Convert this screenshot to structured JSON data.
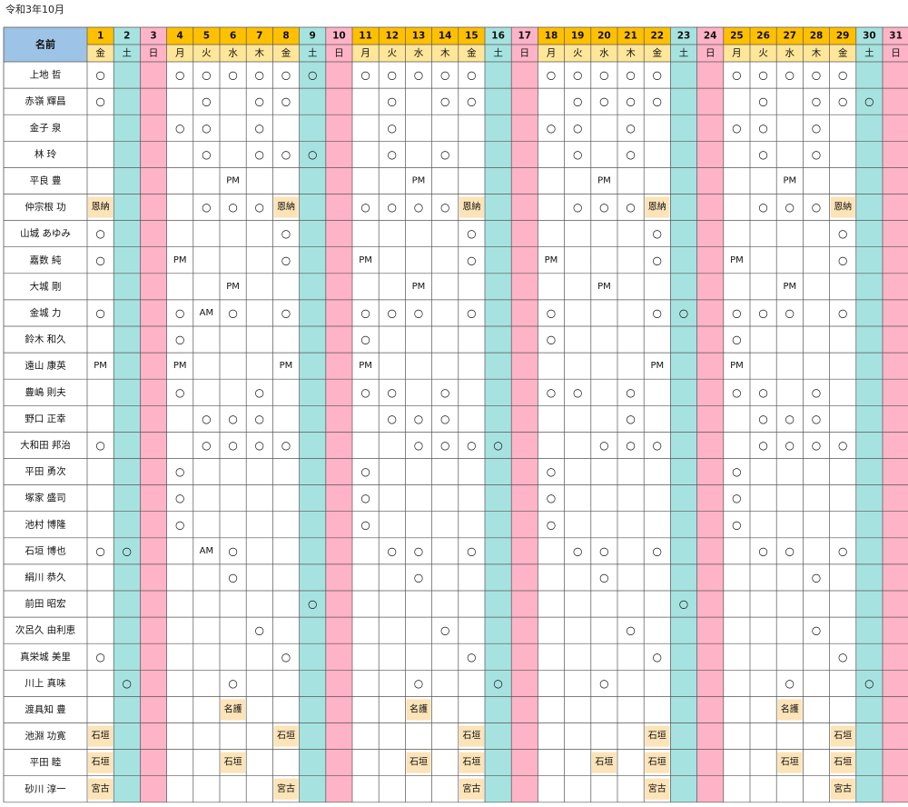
{
  "title": "令和3年10月",
  "header": {
    "name_label": "名前"
  },
  "days": [
    "1",
    "2",
    "3",
    "4",
    "5",
    "6",
    "7",
    "8",
    "9",
    "10",
    "11",
    "12",
    "13",
    "14",
    "15",
    "16",
    "17",
    "18",
    "19",
    "20",
    "21",
    "22",
    "23",
    "24",
    "25",
    "26",
    "27",
    "28",
    "29",
    "30",
    "31"
  ],
  "weekdays": [
    "金",
    "土",
    "日",
    "月",
    "火",
    "水",
    "木",
    "金",
    "土",
    "日",
    "月",
    "火",
    "水",
    "木",
    "金",
    "土",
    "日",
    "月",
    "火",
    "水",
    "木",
    "金",
    "土",
    "日",
    "月",
    "火",
    "水",
    "木",
    "金",
    "土",
    "日"
  ],
  "colors": {
    "header_name_bg": "#9dc3e6",
    "header_day_bg": "#ffc000",
    "header_weekday_bg": "#ffe699",
    "saturday_bg": "#a6e3e0",
    "sunday_bg": "#ffb3c6",
    "tag_bg": "#fce4b8",
    "grid_line": "#555555"
  },
  "rows": [
    {
      "name": "上地 哲",
      "cells": {
        "1": "○",
        "4": "○",
        "5": "○",
        "6": "○",
        "7": "○",
        "8": "○",
        "9": "○",
        "11": "○",
        "12": "○",
        "13": "○",
        "14": "○",
        "15": "○",
        "18": "○",
        "19": "○",
        "20": "○",
        "21": "○",
        "22": "○",
        "25": "○",
        "26": "○",
        "27": "○",
        "28": "○",
        "29": "○"
      }
    },
    {
      "name": "赤嶺 輝昌",
      "cells": {
        "1": "○",
        "5": "○",
        "7": "○",
        "8": "○",
        "12": "○",
        "14": "○",
        "15": "○",
        "19": "○",
        "20": "○",
        "21": "○",
        "22": "○",
        "26": "○",
        "28": "○",
        "29": "○",
        "30": "○"
      }
    },
    {
      "name": "金子 泉",
      "cells": {
        "4": "○",
        "5": "○",
        "7": "○",
        "12": "○",
        "18": "○",
        "19": "○",
        "21": "○",
        "25": "○",
        "26": "○",
        "28": "○"
      }
    },
    {
      "name": "林 玲",
      "cells": {
        "5": "○",
        "7": "○",
        "8": "○",
        "9": "○",
        "12": "○",
        "14": "○",
        "19": "○",
        "21": "○",
        "26": "○",
        "28": "○"
      }
    },
    {
      "name": "平良 豊",
      "cells": {
        "6": "PM",
        "13": "PM",
        "20": "PM",
        "27": "PM"
      }
    },
    {
      "name": "仲宗根 功",
      "cells": {
        "1": "恩納",
        "5": "○",
        "6": "○",
        "7": "○",
        "8": "恩納",
        "11": "○",
        "12": "○",
        "13": "○",
        "14": "○",
        "15": "恩納",
        "19": "○",
        "20": "○",
        "21": "○",
        "22": "恩納",
        "26": "○",
        "27": "○",
        "28": "○",
        "29": "恩納"
      }
    },
    {
      "name": "山城 あゆみ",
      "cells": {
        "1": "○",
        "8": "○",
        "15": "○",
        "22": "○",
        "29": "○"
      }
    },
    {
      "name": "嘉数 純",
      "cells": {
        "1": "○",
        "4": "PM",
        "8": "○",
        "11": "PM",
        "15": "○",
        "18": "PM",
        "22": "○",
        "25": "PM",
        "29": "○"
      }
    },
    {
      "name": "大城 剛",
      "cells": {
        "6": "PM",
        "13": "PM",
        "20": "PM",
        "27": "PM"
      }
    },
    {
      "name": "金城 力",
      "cells": {
        "1": "○",
        "4": "○",
        "5": "AM",
        "6": "○",
        "8": "○",
        "11": "○",
        "12": "○",
        "13": "○",
        "15": "○",
        "18": "○",
        "22": "○",
        "23": "○",
        "25": "○",
        "26": "○",
        "27": "○",
        "29": "○"
      }
    },
    {
      "name": "鈴木 和久",
      "cells": {
        "4": "○",
        "11": "○",
        "18": "○",
        "25": "○"
      }
    },
    {
      "name": "遠山 康英",
      "cells": {
        "1": "PM",
        "4": "PM",
        "8": "PM",
        "11": "PM",
        "22": "PM",
        "25": "PM"
      }
    },
    {
      "name": "豊嶋 則夫",
      "cells": {
        "4": "○",
        "7": "○",
        "11": "○",
        "12": "○",
        "14": "○",
        "18": "○",
        "19": "○",
        "21": "○",
        "25": "○",
        "26": "○",
        "28": "○"
      }
    },
    {
      "name": "野口 正幸",
      "cells": {
        "5": "○",
        "6": "○",
        "7": "○",
        "12": "○",
        "13": "○",
        "14": "○",
        "21": "○",
        "26": "○",
        "27": "○",
        "28": "○"
      }
    },
    {
      "name": "大和田 邦治",
      "cells": {
        "1": "○",
        "5": "○",
        "6": "○",
        "7": "○",
        "8": "○",
        "13": "○",
        "14": "○",
        "15": "○",
        "16": "○",
        "20": "○",
        "21": "○",
        "22": "○",
        "26": "○",
        "27": "○",
        "28": "○",
        "29": "○"
      }
    },
    {
      "name": "平田 勇次",
      "cells": {
        "4": "○",
        "11": "○",
        "18": "○",
        "25": "○"
      }
    },
    {
      "name": "塚家 盛司",
      "cells": {
        "4": "○",
        "11": "○",
        "18": "○",
        "25": "○"
      }
    },
    {
      "name": "池村 博隆",
      "cells": {
        "4": "○",
        "11": "○",
        "18": "○",
        "25": "○"
      }
    },
    {
      "name": "石垣 博也",
      "cells": {
        "1": "○",
        "2": "○",
        "5": "AM",
        "6": "○",
        "12": "○",
        "13": "○",
        "15": "○",
        "19": "○",
        "20": "○",
        "22": "○",
        "26": "○",
        "27": "○",
        "29": "○"
      }
    },
    {
      "name": "絹川 恭久",
      "cells": {
        "6": "○",
        "13": "○",
        "20": "○",
        "28": "○"
      }
    },
    {
      "name": "前田 昭宏",
      "cells": {
        "9": "○",
        "23": "○"
      }
    },
    {
      "name": "次呂久 由利恵",
      "cells": {
        "7": "○",
        "14": "○",
        "21": "○",
        "28": "○"
      }
    },
    {
      "name": "真栄城 美里",
      "cells": {
        "1": "○",
        "8": "○",
        "15": "○",
        "22": "○",
        "29": "○"
      }
    },
    {
      "name": "川上 真味",
      "cells": {
        "2": "○",
        "6": "○",
        "13": "○",
        "16": "○",
        "20": "○",
        "27": "○",
        "30": "○"
      }
    },
    {
      "name": "渡具知 豊",
      "cells": {
        "6": "名護",
        "13": "名護",
        "27": "名護"
      }
    },
    {
      "name": "池淵 功寛",
      "cells": {
        "1": "石垣",
        "8": "石垣",
        "15": "石垣",
        "22": "石垣",
        "29": "石垣"
      }
    },
    {
      "name": "平田 睦",
      "cells": {
        "1": "石垣",
        "6": "石垣",
        "13": "石垣",
        "15": "石垣",
        "20": "石垣",
        "22": "石垣",
        "27": "石垣",
        "29": "石垣"
      }
    },
    {
      "name": "砂川 淳一",
      "cells": {
        "1": "宮古",
        "8": "宮古",
        "15": "宮古",
        "22": "宮古",
        "29": "宮古"
      }
    }
  ]
}
